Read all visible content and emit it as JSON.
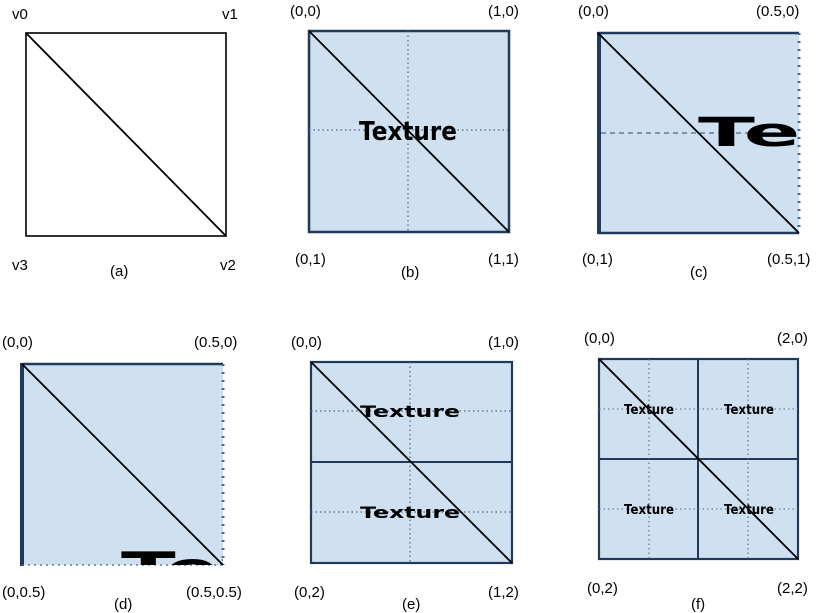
{
  "colors": {
    "fill": "#cfe0f1",
    "frame": "#1f3a5a",
    "line": "#000000",
    "dot": "#4b6a8c"
  },
  "panel_a": {
    "v0": "v0",
    "v1": "v1",
    "v2": "v2",
    "v3": "v3",
    "caption": "(a)"
  },
  "panel_b": {
    "tl": "(0,0)",
    "tr": "(1,0)",
    "bl": "(0,1)",
    "br": "(1,1)",
    "caption": "(b)",
    "texture": "Texture"
  },
  "panel_c": {
    "tl": "(0,0)",
    "tr": "(0.5,0)",
    "bl": "(0,1)",
    "br": "(0.5,1)",
    "caption": "(c)",
    "texture": "Text"
  },
  "panel_d": {
    "tl": "(0,0)",
    "tr": "(0.5,0)",
    "bl": "(0,0.5)",
    "br": "(0.5,0.5)",
    "caption": "(d)",
    "texture": "Tex"
  },
  "panel_e": {
    "tl": "(0,0)",
    "tr": "(1,0)",
    "bl": "(0,2)",
    "br": "(1,2)",
    "caption": "(e)",
    "texture_top": "Texture",
    "texture_bottom": "Texture"
  },
  "panel_f": {
    "tl": "(0,0)",
    "tr": "(2,0)",
    "bl": "(0,2)",
    "br": "(2,2)",
    "caption": "(f)",
    "texture_tl": "Texture",
    "texture_tr": "Texture",
    "texture_bl": "Texture",
    "texture_br": "Texture"
  }
}
